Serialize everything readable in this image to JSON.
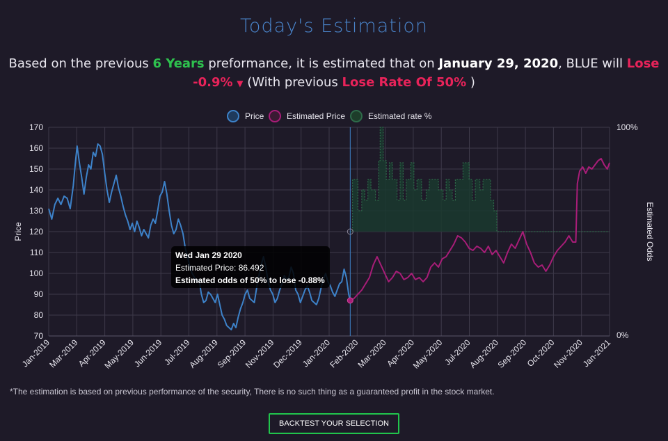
{
  "header": {
    "title": "Today's Estimation",
    "text_1": "Based on the previous ",
    "years": "6 Years",
    "text_2": " preformance, it is estimated that on ",
    "date": "January 29, 2020",
    "text_3": ", BLUE will ",
    "outcome": "Lose -0.9%",
    "text_4": " (With previous ",
    "rate": "Lose Rate Of 50%",
    "text_5": " )"
  },
  "tooltip": {
    "title": "Wed Jan 29 2020",
    "line1": "Estimated Price: 86.492",
    "line2": "Estimated odds of 50% to lose -0.88%"
  },
  "footer": {
    "disclaimer": "*The estimation is based on previous performance of the security, There is no such thing as a guaranteed profit in the stock market.",
    "button": "BACKTEST YOUR SELECTION"
  },
  "colors": {
    "price": "#3d82c9",
    "estimated": "#a81d78",
    "rate_fill": "#1a3a2e",
    "rate_line": "#2e6b4a"
  },
  "chart_data": {
    "type": "line",
    "legend": [
      "Price",
      "Estimated Price",
      "Estimated rate %"
    ],
    "ylabel": "Price",
    "y2label": "Estimated Odds",
    "ylim": [
      70,
      170
    ],
    "yticks": [
      70,
      80,
      90,
      100,
      110,
      120,
      130,
      140,
      150,
      160,
      170
    ],
    "y2ticks": [
      "0%",
      "100%"
    ],
    "xticks": [
      "Jan-2019",
      "Mar-2019",
      "Apr-2019",
      "May-2019",
      "Jun-2019",
      "Jul-2019",
      "Aug-2019",
      "Sep-2019",
      "Nov-2019",
      "Dec-2019",
      "Jan-2020",
      "Feb-2020",
      "Mar-2020",
      "Apr-2020",
      "May-2020",
      "Jul-2020",
      "Aug-2020",
      "Sep-2020",
      "Oct-2020",
      "Nov-2020",
      "Jan-2021"
    ],
    "x_range_days": [
      0,
      731
    ],
    "marker_day": 393,
    "series": [
      {
        "name": "Price",
        "points": [
          [
            0,
            131
          ],
          [
            4,
            126
          ],
          [
            8,
            133
          ],
          [
            12,
            136
          ],
          [
            16,
            133
          ],
          [
            20,
            137
          ],
          [
            24,
            136
          ],
          [
            28,
            131
          ],
          [
            32,
            142
          ],
          [
            35,
            154
          ],
          [
            37,
            161
          ],
          [
            40,
            153
          ],
          [
            43,
            146
          ],
          [
            46,
            138
          ],
          [
            49,
            146
          ],
          [
            52,
            152
          ],
          [
            55,
            150
          ],
          [
            58,
            158
          ],
          [
            61,
            156
          ],
          [
            64,
            162
          ],
          [
            67,
            161
          ],
          [
            70,
            157
          ],
          [
            73,
            148
          ],
          [
            76,
            140
          ],
          [
            79,
            134
          ],
          [
            82,
            139
          ],
          [
            85,
            143
          ],
          [
            88,
            147
          ],
          [
            91,
            141
          ],
          [
            94,
            137
          ],
          [
            97,
            132
          ],
          [
            100,
            128
          ],
          [
            103,
            125
          ],
          [
            106,
            121
          ],
          [
            109,
            124
          ],
          [
            112,
            120
          ],
          [
            115,
            125
          ],
          [
            118,
            122
          ],
          [
            121,
            118
          ],
          [
            124,
            121
          ],
          [
            127,
            119
          ],
          [
            130,
            117
          ],
          [
            133,
            123
          ],
          [
            136,
            126
          ],
          [
            139,
            124
          ],
          [
            142,
            130
          ],
          [
            145,
            137
          ],
          [
            148,
            139
          ],
          [
            151,
            144
          ],
          [
            154,
            138
          ],
          [
            157,
            130
          ],
          [
            160,
            123
          ],
          [
            163,
            119
          ],
          [
            166,
            121
          ],
          [
            169,
            126
          ],
          [
            172,
            123
          ],
          [
            175,
            119
          ],
          [
            178,
            112
          ],
          [
            181,
            108
          ],
          [
            184,
            103
          ],
          [
            187,
            100
          ],
          [
            190,
            98
          ],
          [
            193,
            96
          ],
          [
            196,
            97
          ],
          [
            199,
            90
          ],
          [
            202,
            86
          ],
          [
            205,
            87
          ],
          [
            208,
            91
          ],
          [
            211,
            90
          ],
          [
            214,
            88
          ],
          [
            217,
            86
          ],
          [
            220,
            90
          ],
          [
            223,
            85
          ],
          [
            226,
            80
          ],
          [
            229,
            78
          ],
          [
            232,
            75
          ],
          [
            235,
            74
          ],
          [
            238,
            73
          ],
          [
            241,
            76
          ],
          [
            244,
            74
          ],
          [
            247,
            79
          ],
          [
            250,
            83
          ],
          [
            253,
            86
          ],
          [
            256,
            90
          ],
          [
            259,
            92
          ],
          [
            262,
            88
          ],
          [
            265,
            87
          ],
          [
            268,
            86
          ],
          [
            271,
            93
          ],
          [
            274,
            99
          ],
          [
            277,
            104
          ],
          [
            280,
            108
          ],
          [
            283,
            103
          ],
          [
            286,
            96
          ],
          [
            289,
            92
          ],
          [
            292,
            90
          ],
          [
            295,
            86
          ],
          [
            298,
            88
          ],
          [
            301,
            92
          ],
          [
            304,
            95
          ],
          [
            307,
            99
          ],
          [
            310,
            97
          ],
          [
            313,
            98
          ],
          [
            316,
            103
          ],
          [
            319,
            100
          ],
          [
            322,
            92
          ],
          [
            325,
            90
          ],
          [
            328,
            86
          ],
          [
            331,
            89
          ],
          [
            334,
            92
          ],
          [
            337,
            94
          ],
          [
            340,
            91
          ],
          [
            343,
            87
          ],
          [
            346,
            86
          ],
          [
            349,
            85
          ],
          [
            352,
            88
          ],
          [
            355,
            93
          ],
          [
            358,
            97
          ],
          [
            361,
            100
          ],
          [
            364,
            96
          ],
          [
            367,
            94
          ],
          [
            370,
            91
          ],
          [
            373,
            89
          ],
          [
            376,
            92
          ],
          [
            379,
            95
          ],
          [
            382,
            96
          ],
          [
            385,
            102
          ],
          [
            388,
            98
          ],
          [
            391,
            90
          ],
          [
            393,
            87
          ]
        ]
      },
      {
        "name": "Estimated Price",
        "points": [
          [
            393,
            87
          ],
          [
            398,
            88
          ],
          [
            403,
            90
          ],
          [
            408,
            92
          ],
          [
            413,
            95
          ],
          [
            418,
            98
          ],
          [
            423,
            104
          ],
          [
            428,
            108
          ],
          [
            433,
            104
          ],
          [
            438,
            100
          ],
          [
            443,
            96
          ],
          [
            448,
            98
          ],
          [
            453,
            101
          ],
          [
            458,
            100
          ],
          [
            463,
            97
          ],
          [
            468,
            98
          ],
          [
            473,
            100
          ],
          [
            478,
            97
          ],
          [
            483,
            98
          ],
          [
            488,
            96
          ],
          [
            493,
            98
          ],
          [
            498,
            103
          ],
          [
            503,
            105
          ],
          [
            508,
            103
          ],
          [
            513,
            107
          ],
          [
            518,
            108
          ],
          [
            523,
            111
          ],
          [
            528,
            114
          ],
          [
            533,
            118
          ],
          [
            538,
            117
          ],
          [
            543,
            115
          ],
          [
            548,
            112
          ],
          [
            553,
            111
          ],
          [
            558,
            113
          ],
          [
            563,
            112
          ],
          [
            568,
            110
          ],
          [
            573,
            113
          ],
          [
            578,
            109
          ],
          [
            583,
            111
          ],
          [
            588,
            108
          ],
          [
            593,
            105
          ],
          [
            598,
            110
          ],
          [
            603,
            114
          ],
          [
            608,
            112
          ],
          [
            613,
            116
          ],
          [
            618,
            120
          ],
          [
            623,
            114
          ],
          [
            628,
            110
          ],
          [
            633,
            105
          ],
          [
            638,
            103
          ],
          [
            643,
            104
          ],
          [
            648,
            101
          ],
          [
            653,
            104
          ],
          [
            658,
            108
          ],
          [
            663,
            111
          ],
          [
            668,
            113
          ],
          [
            673,
            115
          ],
          [
            678,
            118
          ],
          [
            683,
            115
          ],
          [
            687,
            115
          ],
          [
            689,
            143
          ],
          [
            692,
            149
          ],
          [
            696,
            151
          ],
          [
            700,
            148
          ],
          [
            704,
            151
          ],
          [
            708,
            150
          ],
          [
            712,
            152
          ],
          [
            716,
            154
          ],
          [
            720,
            155
          ],
          [
            724,
            152
          ],
          [
            728,
            150
          ],
          [
            731,
            153
          ]
        ]
      },
      {
        "name": "Estimated rate %",
        "points_pct": [
          [
            393,
            50
          ],
          [
            396,
            75
          ],
          [
            403,
            60
          ],
          [
            408,
            70
          ],
          [
            412,
            65
          ],
          [
            416,
            75
          ],
          [
            420,
            70
          ],
          [
            426,
            65
          ],
          [
            430,
            84
          ],
          [
            432,
            100
          ],
          [
            436,
            84
          ],
          [
            440,
            75
          ],
          [
            444,
            83
          ],
          [
            448,
            75
          ],
          [
            454,
            65
          ],
          [
            458,
            83
          ],
          [
            462,
            65
          ],
          [
            466,
            75
          ],
          [
            472,
            83
          ],
          [
            476,
            70
          ],
          [
            480,
            75
          ],
          [
            486,
            65
          ],
          [
            492,
            70
          ],
          [
            496,
            75
          ],
          [
            502,
            75
          ],
          [
            508,
            70
          ],
          [
            514,
            65
          ],
          [
            518,
            75
          ],
          [
            522,
            70
          ],
          [
            526,
            65
          ],
          [
            530,
            75
          ],
          [
            536,
            75
          ],
          [
            540,
            83
          ],
          [
            544,
            83
          ],
          [
            548,
            75
          ],
          [
            552,
            65
          ],
          [
            556,
            75
          ],
          [
            562,
            70
          ],
          [
            566,
            75
          ],
          [
            570,
            75
          ],
          [
            576,
            65
          ],
          [
            580,
            60
          ],
          [
            584,
            50
          ],
          [
            590,
            50
          ],
          [
            596,
            50
          ],
          [
            602,
            50
          ],
          [
            608,
            50
          ],
          [
            614,
            50
          ],
          [
            620,
            50
          ],
          [
            626,
            50
          ],
          [
            632,
            50
          ],
          [
            638,
            50
          ],
          [
            644,
            50
          ],
          [
            650,
            50
          ],
          [
            656,
            50
          ],
          [
            662,
            50
          ],
          [
            668,
            50
          ],
          [
            674,
            50
          ],
          [
            680,
            50
          ],
          [
            686,
            50
          ],
          [
            692,
            50
          ],
          [
            698,
            50
          ],
          [
            704,
            50
          ],
          [
            710,
            50
          ],
          [
            716,
            50
          ],
          [
            722,
            50
          ],
          [
            728,
            50
          ],
          [
            731,
            50
          ]
        ]
      }
    ]
  }
}
